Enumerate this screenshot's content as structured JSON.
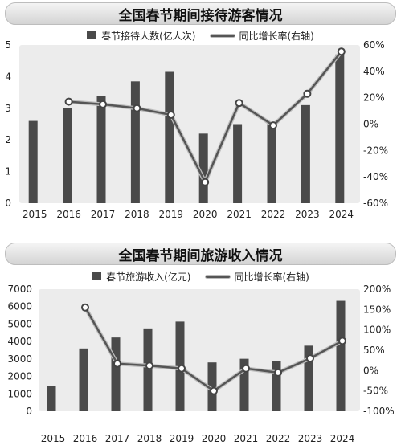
{
  "chart_data": [
    {
      "type": "bar",
      "title": "全国春节期间接待游客情况",
      "categories": [
        "2015",
        "2016",
        "2017",
        "2018",
        "2019",
        "2020",
        "2021",
        "2022",
        "2023",
        "2024"
      ],
      "series": [
        {
          "name": "春节接待人数(亿人次)",
          "type": "bar",
          "axis": "left",
          "values": [
            2.6,
            3.0,
            3.4,
            3.85,
            4.15,
            2.2,
            2.5,
            2.5,
            3.1,
            4.7
          ]
        },
        {
          "name": "同比增长率(右轴)",
          "type": "line",
          "axis": "right",
          "values": [
            null,
            17,
            15,
            12,
            7,
            -44,
            16,
            -1,
            23,
            55
          ]
        }
      ],
      "yticks_left": [
        "0",
        "1",
        "2",
        "3",
        "4",
        "5"
      ],
      "yticks_right": [
        "60%",
        "40%",
        "20%",
        "0%",
        "-20%",
        "-40%",
        "-60%"
      ],
      "ylim_left": [
        0,
        5
      ],
      "ylim_right": [
        -60,
        60
      ],
      "grid": false,
      "legend_position": "top"
    },
    {
      "type": "bar",
      "title": "全国春节期间旅游收入情况",
      "categories": [
        "2015",
        "2016",
        "2017",
        "2018",
        "2019",
        "2020",
        "2021",
        "2022",
        "2023",
        "2024"
      ],
      "series": [
        {
          "name": "春节旅游收入(亿元)",
          "type": "bar",
          "axis": "left",
          "values": [
            1450,
            3600,
            4230,
            4750,
            5140,
            2800,
            3010,
            2890,
            3760,
            6330
          ]
        },
        {
          "name": "同比增长率(右轴)",
          "type": "line",
          "axis": "right",
          "values": [
            null,
            155,
            17,
            12,
            5,
            -50,
            5,
            -5,
            30,
            73
          ]
        }
      ],
      "yticks_left": [
        "0",
        "1000",
        "2000",
        "3000",
        "4000",
        "5000",
        "6000",
        "7000"
      ],
      "yticks_right": [
        "200%",
        "150%",
        "100%",
        "50%",
        "0%",
        "-50%",
        "-100%"
      ],
      "ylim_left": [
        0,
        7000
      ],
      "ylim_right": [
        -100,
        200
      ],
      "grid": false,
      "legend_position": "top"
    }
  ],
  "colors": {
    "bar": "#4a4a4a",
    "line": "#555555",
    "plot_bg": "#ececec"
  }
}
